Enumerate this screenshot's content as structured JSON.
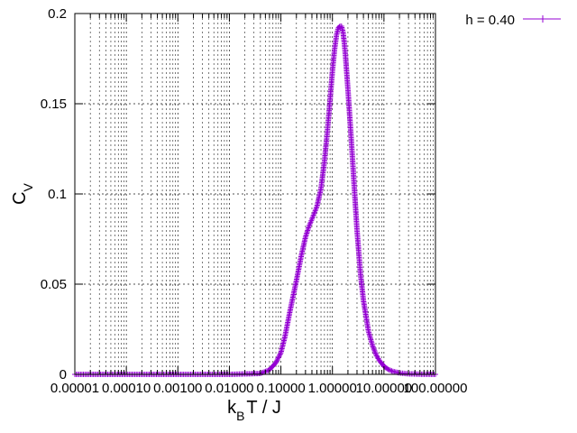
{
  "chart_data": {
    "type": "line",
    "title": "",
    "xlabel": {
      "main": "k",
      "sub": "B",
      "rest": "T / J"
    },
    "ylabel": {
      "main": "C",
      "sub": "V"
    },
    "x_scale": "log",
    "xlim": [
      1e-05,
      100
    ],
    "ylim": [
      0,
      0.2
    ],
    "x_ticks": [
      1e-05,
      0.0001,
      0.001,
      0.01,
      0.1,
      1,
      10,
      100
    ],
    "x_tick_labels": [
      "0.00001",
      "0.00010",
      "0.00100",
      "0.01000",
      "0.10000",
      "1.00000",
      "10.00000",
      "100.00000"
    ],
    "y_ticks": [
      0,
      0.05,
      0.1,
      0.15,
      0.2
    ],
    "y_tick_labels": [
      "0",
      "0.05",
      "0.1",
      "0.15",
      "0.2"
    ],
    "grid": true,
    "legend_position": "top-right-outside",
    "series": [
      {
        "name": "h = 0.40",
        "color": "#9400d3",
        "marker": "plus",
        "x": [
          1e-05,
          0.0001,
          0.001,
          0.01,
          0.04,
          0.06,
          0.08,
          0.1,
          0.12,
          0.15,
          0.2,
          0.25,
          0.3,
          0.35,
          0.4,
          0.5,
          0.6,
          0.7,
          0.8,
          0.9,
          1.0,
          1.1,
          1.2,
          1.3,
          1.4,
          1.5,
          1.6,
          1.7,
          1.8,
          2.0,
          2.3,
          2.6,
          3.0,
          3.5,
          4.0,
          5.0,
          6.0,
          7.0,
          8.0,
          10.0,
          12.0,
          15.0,
          20.0,
          30.0,
          50.0,
          100.0
        ],
        "y": [
          0,
          0,
          0,
          0,
          0.0005,
          0.0025,
          0.0065,
          0.012,
          0.021,
          0.035,
          0.052,
          0.066,
          0.076,
          0.082,
          0.086,
          0.093,
          0.103,
          0.118,
          0.135,
          0.152,
          0.168,
          0.18,
          0.188,
          0.192,
          0.193,
          0.193,
          0.19,
          0.184,
          0.176,
          0.158,
          0.132,
          0.108,
          0.08,
          0.056,
          0.041,
          0.024,
          0.016,
          0.011,
          0.008,
          0.0045,
          0.0028,
          0.0016,
          0.0008,
          0.0003,
          0.0001,
          0
        ]
      }
    ]
  }
}
